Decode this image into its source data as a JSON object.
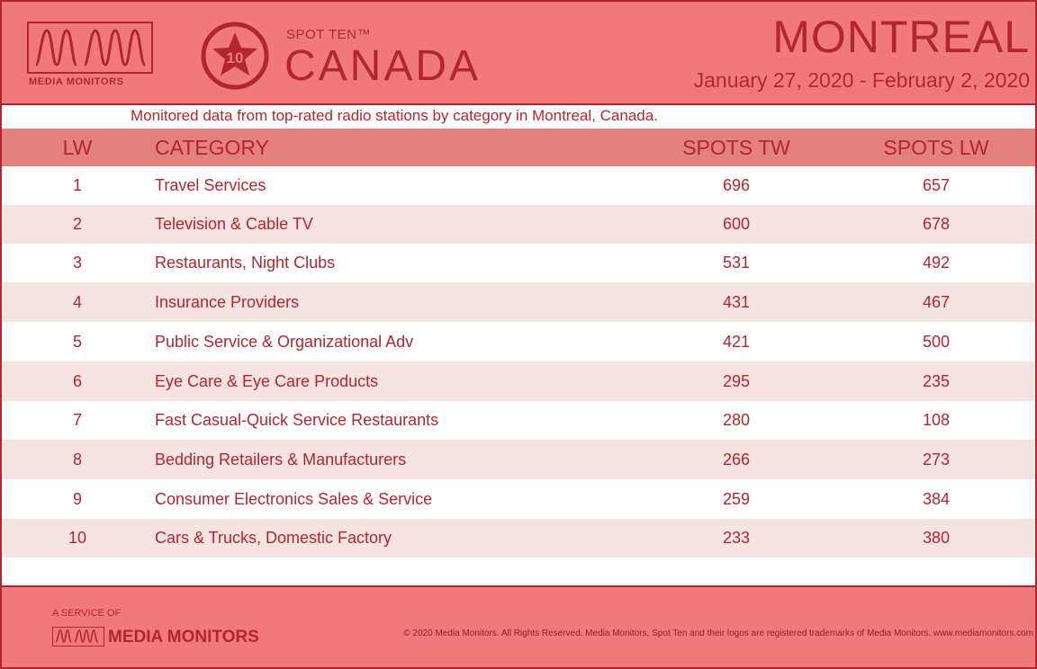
{
  "header": {
    "logo_text": "MEDIA MONITORS",
    "badge_number": "10",
    "spot_ten": "SPOT TEN™",
    "country": "CANADA",
    "city": "MONTREAL",
    "date_range": "January 27, 2020 - February 2, 2020"
  },
  "subtitle": "Monitored data from top-rated radio stations by category in Montreal, Canada.",
  "columns": {
    "lw": "LW",
    "category": "CATEGORY",
    "spots_tw": "SPOTS TW",
    "spots_lw": "SPOTS LW"
  },
  "rows": [
    {
      "lw": "1",
      "category": "Travel Services",
      "spots_tw": "696",
      "spots_lw": "657"
    },
    {
      "lw": "2",
      "category": "Television & Cable TV",
      "spots_tw": "600",
      "spots_lw": "678"
    },
    {
      "lw": "3",
      "category": "Restaurants, Night Clubs",
      "spots_tw": "531",
      "spots_lw": "492"
    },
    {
      "lw": "4",
      "category": "Insurance Providers",
      "spots_tw": "431",
      "spots_lw": "467"
    },
    {
      "lw": "5",
      "category": "Public Service & Organizational Adv",
      "spots_tw": "421",
      "spots_lw": "500"
    },
    {
      "lw": "6",
      "category": "Eye Care & Eye Care Products",
      "spots_tw": "295",
      "spots_lw": "235"
    },
    {
      "lw": "7",
      "category": "Fast Casual-Quick Service Restaurants",
      "spots_tw": "280",
      "spots_lw": "108"
    },
    {
      "lw": "8",
      "category": "Bedding Retailers & Manufacturers",
      "spots_tw": "266",
      "spots_lw": "273"
    },
    {
      "lw": "9",
      "category": "Consumer Electronics Sales & Service",
      "spots_tw": "259",
      "spots_lw": "384"
    },
    {
      "lw": "10",
      "category": "Cars & Trucks, Domestic Factory",
      "spots_tw": "233",
      "spots_lw": "380"
    }
  ],
  "footer": {
    "service_label": "A SERVICE OF",
    "logo_text": "MEDIA MONITORS",
    "copyright": "© 2020 Media Monitors. All Rights Reserved. Media Monitors, Spot Ten and their logos are registered trademarks of Media Monitors. www.mediamonitors.com"
  },
  "colors": {
    "header_bg": "#f07a7b",
    "accent": "#b3262f",
    "column_header_bg": "#e58081",
    "alt_row_bg": "#f5e4e2"
  }
}
